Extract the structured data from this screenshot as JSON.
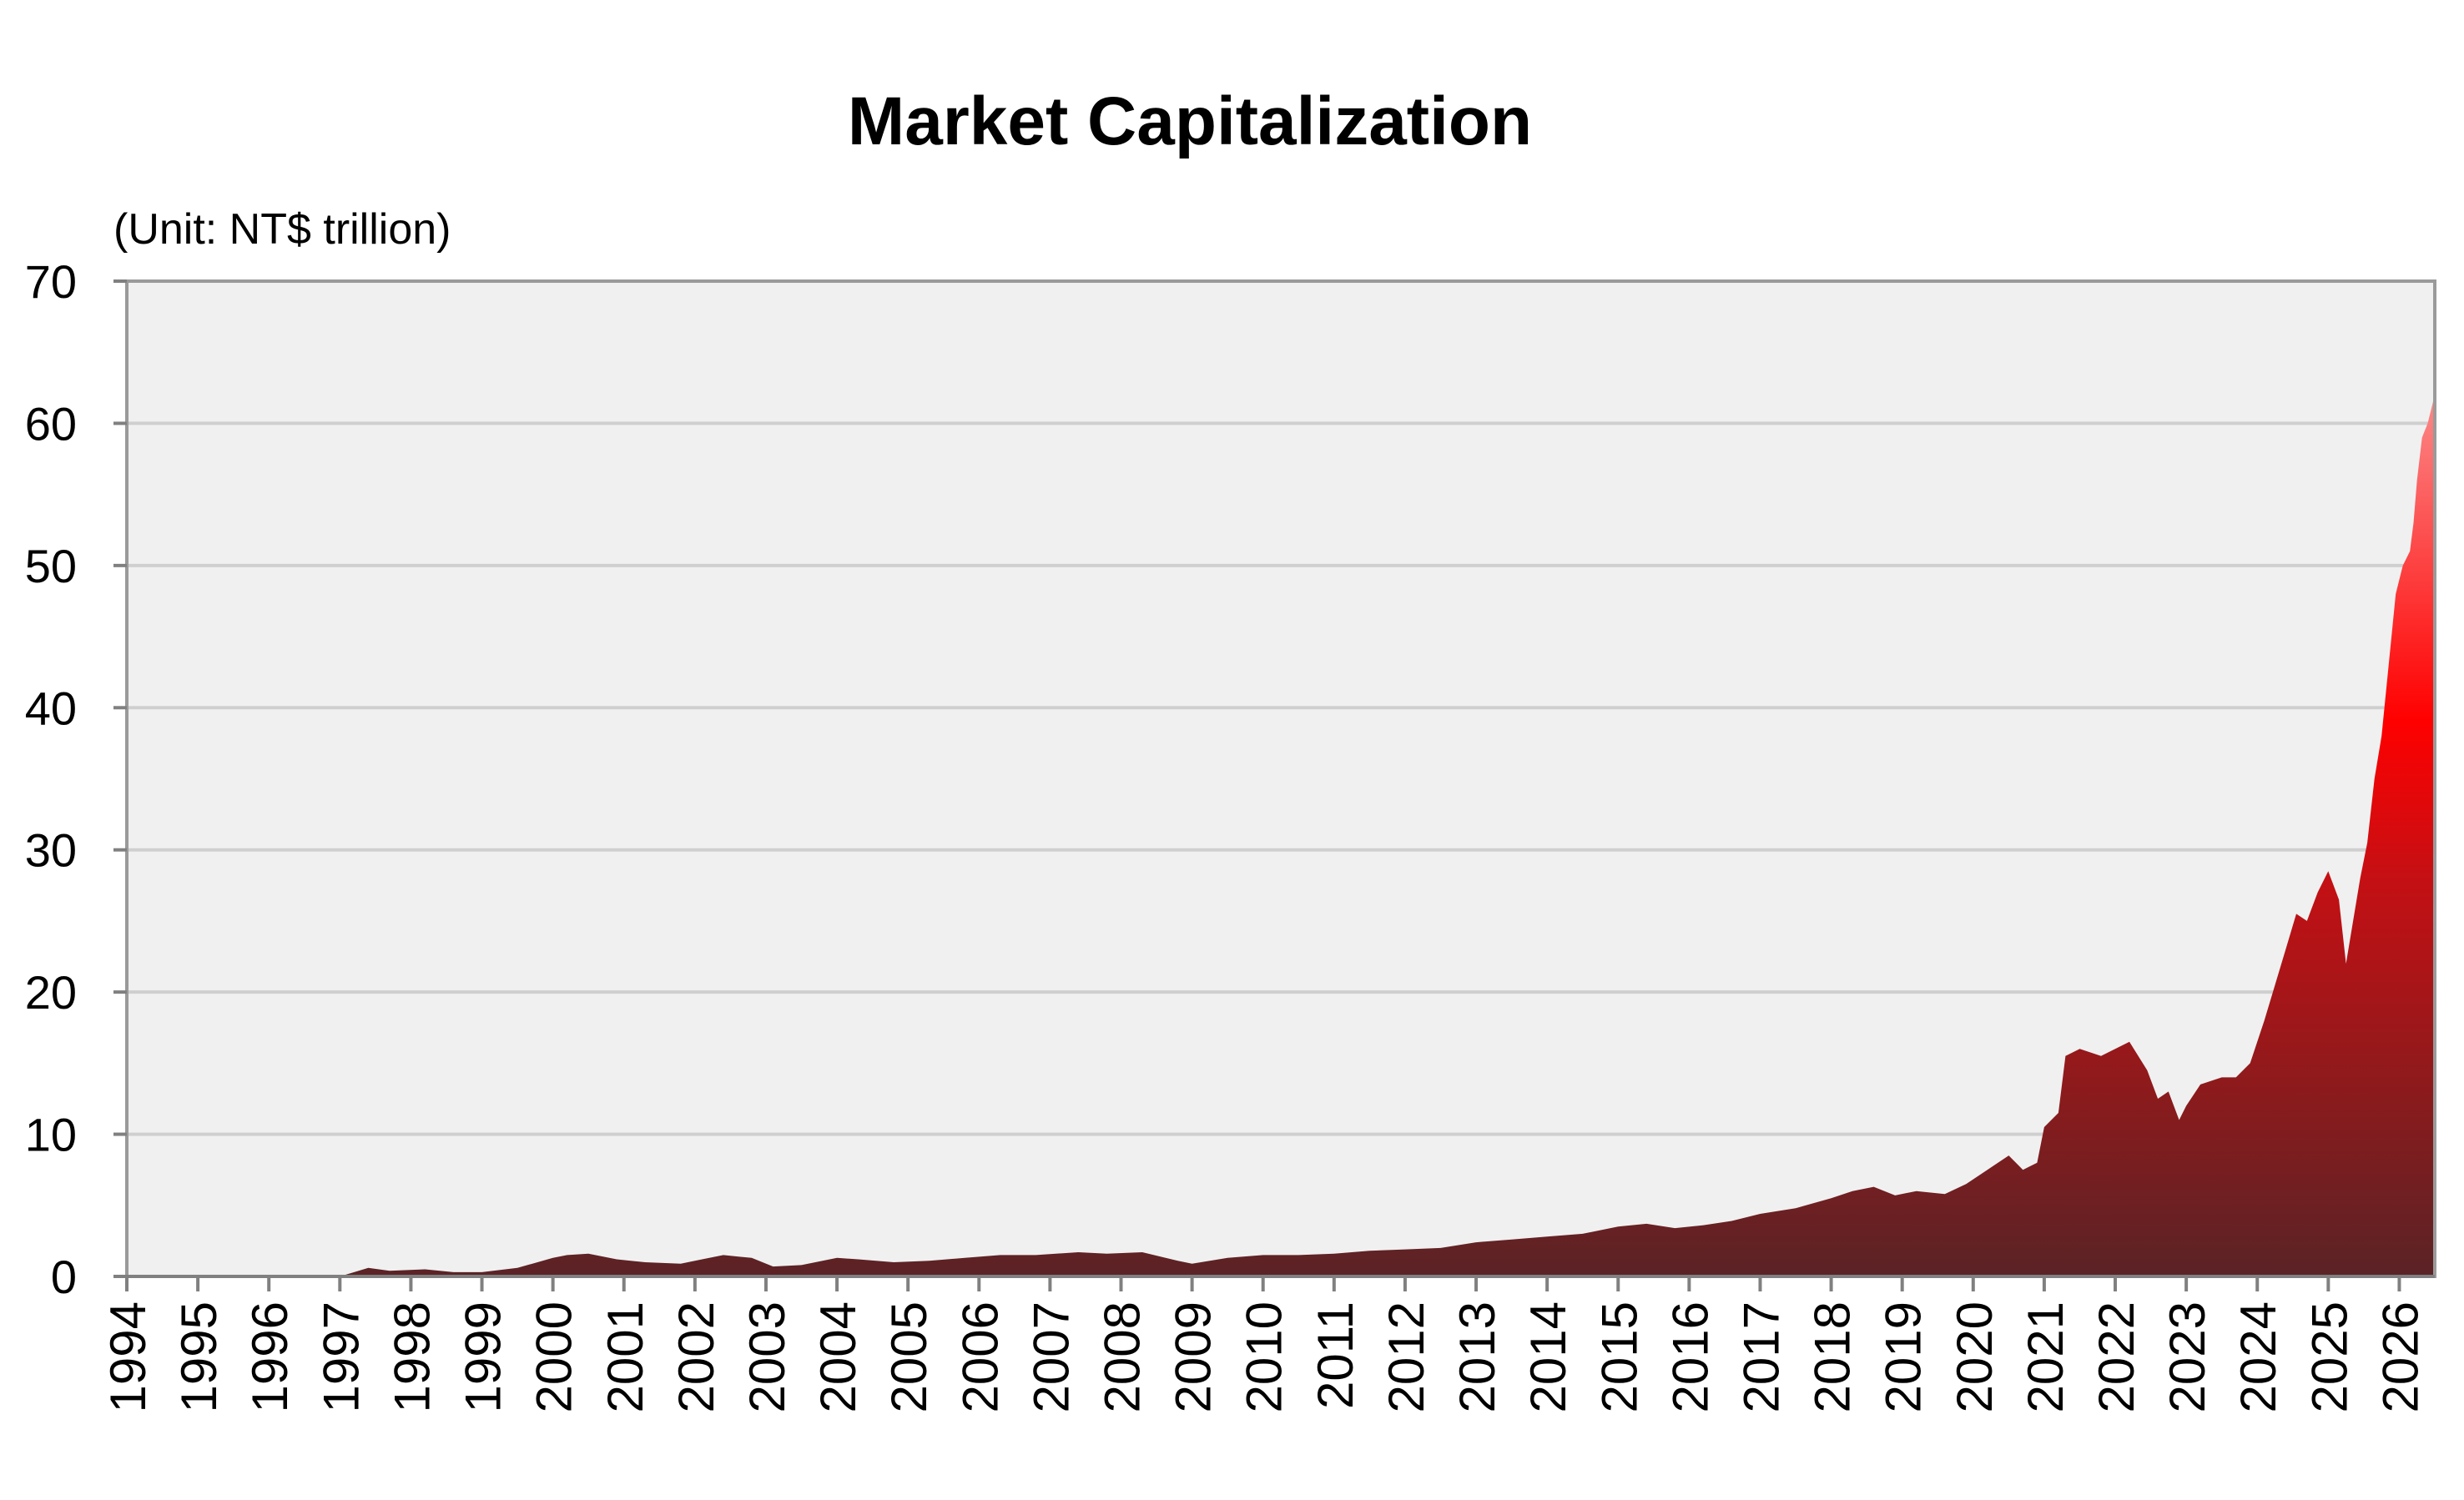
{
  "chart_data": {
    "type": "area",
    "title": "Market Capitalization",
    "unit_label": "(Unit: NT$ trillion)",
    "xlabel": "",
    "ylabel": "",
    "xlim": [
      1994,
      2026.5
    ],
    "ylim": [
      0,
      70
    ],
    "y_ticks": [
      "0",
      "10",
      "20",
      "30",
      "40",
      "50",
      "60",
      "70"
    ],
    "x_ticks": [
      "1994",
      "1995",
      "1996",
      "1997",
      "1998",
      "1999",
      "2000",
      "2001",
      "2002",
      "2003",
      "2004",
      "2005",
      "2006",
      "2007",
      "2008",
      "2009",
      "2010",
      "2011",
      "2012",
      "2013",
      "2014",
      "2015",
      "2016",
      "2017",
      "2018",
      "2019",
      "2020",
      "2021",
      "2022",
      "2023",
      "2024",
      "2025",
      "2026"
    ],
    "grid": true,
    "legend": "none",
    "colors": {
      "plot_bg": "#f0f0f0",
      "grid": "#cfcfcf",
      "axis": "#808080",
      "fill_dark": "#5a2326",
      "fill_mid": "#c41014",
      "fill_bright": "#ff0000",
      "fill_light": "#fb8a8a"
    },
    "series": [
      {
        "x": [
          1994,
          1997.0,
          1997.4,
          1997.7,
          1998.2,
          1998.6,
          1999.0,
          1999.5,
          2000.0,
          2000.2,
          2000.5,
          2000.9,
          2001.3,
          2001.8,
          2002.1,
          2002.4,
          2002.8,
          2003.1,
          2003.5,
          2004.0,
          2004.3,
          2004.8,
          2005.3,
          2005.8,
          2006.3,
          2006.8,
          2007.4,
          2007.8,
          2008.3,
          2008.8,
          2009.0,
          2009.5,
          2010.0,
          2010.5,
          2011.0,
          2011.5,
          2012.0,
          2012.5,
          2013.0,
          2013.5,
          2014.0,
          2014.5,
          2015.0,
          2015.4,
          2015.8,
          2016.2,
          2016.6,
          2017.0,
          2017.5,
          2018.0,
          2018.3,
          2018.6,
          2018.9,
          2019.2,
          2019.6,
          2019.9,
          2020.2,
          2020.5,
          2020.7,
          2020.9,
          2021.0,
          2021.2,
          2021.3,
          2021.5,
          2021.8,
          2022.0,
          2022.2,
          2022.45,
          2022.6,
          2022.75,
          2022.9,
          2023.0,
          2023.2,
          2023.5,
          2023.7,
          2023.9,
          2024.1,
          2024.25,
          2024.4,
          2024.55,
          2024.7,
          2024.85,
          2025.0,
          2025.15,
          2025.25,
          2025.35,
          2025.45,
          2025.55,
          2025.65,
          2025.75,
          2025.85,
          2025.95,
          2026.05,
          2026.15,
          2026.2,
          2026.25,
          2026.32,
          2026.4,
          2026.45,
          2026.5
        ],
        "y": [
          0,
          0,
          0.6,
          0.4,
          0.5,
          0.3,
          0.3,
          0.6,
          1.3,
          1.5,
          1.6,
          1.2,
          1.0,
          0.9,
          1.2,
          1.5,
          1.3,
          0.7,
          0.8,
          1.3,
          1.2,
          1.0,
          1.1,
          1.3,
          1.5,
          1.5,
          1.7,
          1.6,
          1.7,
          1.1,
          0.9,
          1.3,
          1.5,
          1.5,
          1.6,
          1.8,
          1.9,
          2.0,
          2.4,
          2.6,
          2.8,
          3.0,
          3.5,
          3.7,
          3.4,
          3.6,
          3.9,
          4.4,
          4.8,
          5.5,
          6.0,
          6.3,
          5.7,
          6.0,
          5.8,
          6.5,
          7.5,
          8.5,
          7.5,
          8.0,
          10.5,
          11.5,
          15.5,
          16.0,
          15.5,
          16.0,
          16.5,
          14.5,
          12.5,
          13.0,
          11.0,
          12.0,
          13.5,
          14.0,
          14.0,
          15.0,
          18.0,
          20.5,
          23.0,
          25.5,
          25.0,
          27.0,
          28.5,
          26.5,
          22.0,
          25.0,
          28.0,
          30.5,
          35.0,
          38.0,
          43.0,
          48.0,
          50.0,
          51.0,
          53.0,
          56.0,
          59.0,
          60.0,
          61.0,
          62.0
        ]
      }
    ]
  }
}
